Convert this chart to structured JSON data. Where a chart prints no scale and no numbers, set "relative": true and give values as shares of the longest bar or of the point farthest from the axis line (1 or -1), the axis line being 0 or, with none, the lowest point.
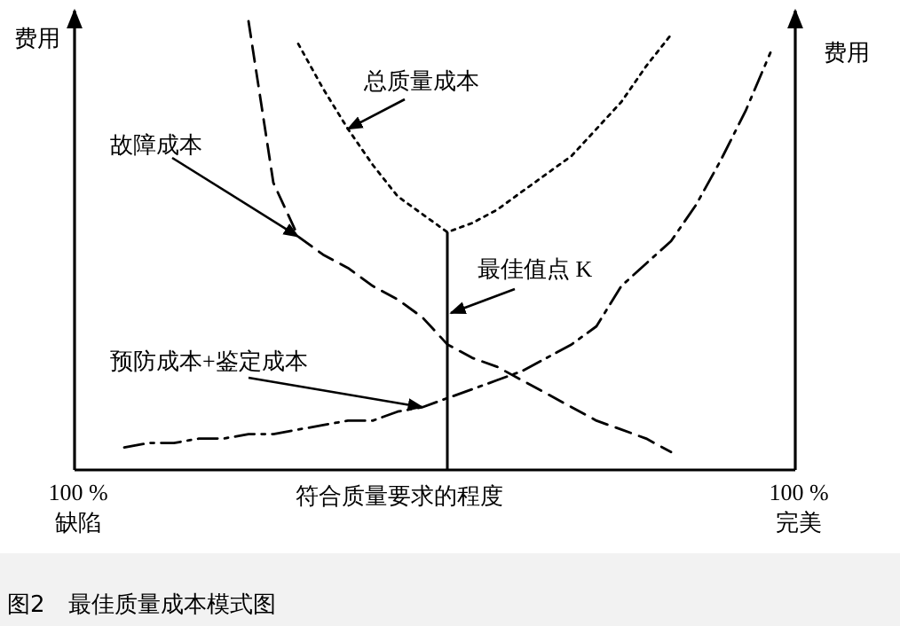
{
  "chart_data": {
    "type": "line",
    "relative": true,
    "xlabel": "符合质量要求的程度",
    "ylabel": "费用",
    "y2label": "费用",
    "categories": [
      "100 %\n缺陷",
      null,
      null,
      null,
      null,
      null,
      null,
      null,
      null,
      null,
      null,
      null,
      null,
      null,
      null,
      null,
      null,
      null,
      null,
      null,
      null,
      null,
      null,
      null,
      null,
      null,
      null,
      null,
      null,
      "100 %\n完美"
    ],
    "series": [
      {
        "name": "总质量成本",
        "color": "#000000",
        "line_style": "dotted",
        "values": [
          null,
          null,
          null,
          null,
          null,
          null,
          null,
          null,
          null,
          0.95,
          0.85,
          0.76,
          0.68,
          0.61,
          0.57,
          0.53,
          0.55,
          0.58,
          0.62,
          0.66,
          0.7,
          0.76,
          0.82,
          0.9,
          0.97,
          null,
          null,
          null,
          null,
          null
        ]
      },
      {
        "name": "故障成本",
        "color": "#000000",
        "line_style": "dashed",
        "values": [
          null,
          null,
          null,
          null,
          null,
          null,
          null,
          1.0,
          0.64,
          0.52,
          0.48,
          0.45,
          0.41,
          0.38,
          0.34,
          0.28,
          0.25,
          0.23,
          0.2,
          0.17,
          0.14,
          0.11,
          0.09,
          0.07,
          0.04,
          null,
          null,
          null,
          null,
          null
        ]
      },
      {
        "name": "预防成本+鉴定成本",
        "color": "#000000",
        "line_style": "dashdot",
        "values": [
          null,
          null,
          0.05,
          0.06,
          0.06,
          0.07,
          0.07,
          0.08,
          0.08,
          0.09,
          0.1,
          0.11,
          0.11,
          0.13,
          0.14,
          0.16,
          0.18,
          0.2,
          0.22,
          0.25,
          0.28,
          0.32,
          0.41,
          0.46,
          0.51,
          0.59,
          0.69,
          0.8,
          0.93,
          null
        ]
      }
    ],
    "annotations": [
      "最佳值点 K",
      "图2　最佳质量成本模式图"
    ]
  }
}
